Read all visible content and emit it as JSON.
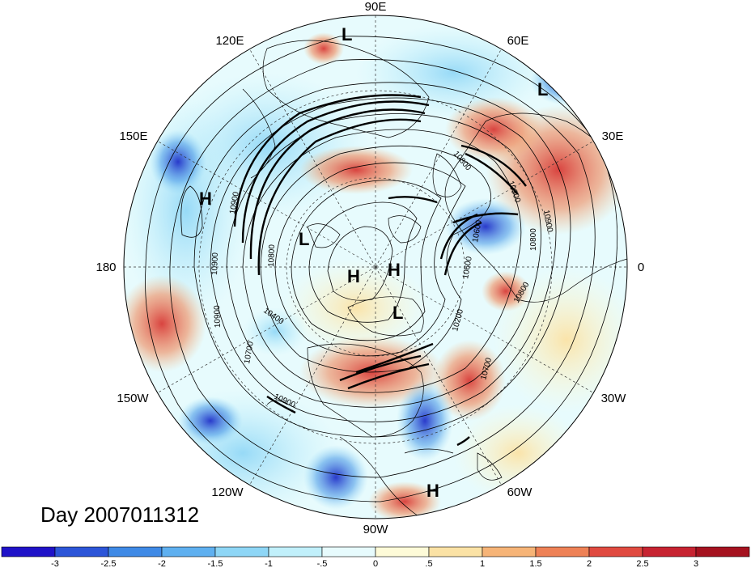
{
  "title": "Day 2007011312",
  "longitude_labels": {
    "lon_90E": "90E",
    "lon_120E": "120E",
    "lon_60E": "60E",
    "lon_150E": "150E",
    "lon_30E": "30E",
    "lon_180": "180",
    "lon_0": "0",
    "lon_150W": "150W",
    "lon_30W": "30W",
    "lon_120W": "120W",
    "lon_60W": "60W",
    "lon_90W": "90W"
  },
  "pressure_centers": [
    {
      "label": "L",
      "name": "low-center-north"
    },
    {
      "label": "L",
      "name": "low-center-europe"
    },
    {
      "label": "H",
      "name": "high-center-pacific"
    },
    {
      "label": "L",
      "name": "low-center-siberia"
    },
    {
      "label": "H",
      "name": "high-center-arctic-west"
    },
    {
      "label": "H",
      "name": "high-center-arctic-east"
    },
    {
      "label": "L",
      "name": "low-center-greenland"
    },
    {
      "label": "H",
      "name": "high-center-south-america"
    }
  ],
  "contour_labels": [
    "10900",
    "10900",
    "10800",
    "10900",
    "10900",
    "10800",
    "10400",
    "10900",
    "10700",
    "10700",
    "10900",
    "10200",
    "10600",
    "10800",
    "10800",
    "10600"
  ],
  "colorbar": {
    "ticks": [
      "-3",
      "-2.5",
      "-2",
      "-1.5",
      "-1",
      "-.5",
      "0",
      ".5",
      "1",
      "1.5",
      "2",
      "2.5",
      "3"
    ],
    "colors": [
      "#1f12c8",
      "#2c55d8",
      "#3f8ae6",
      "#5fb0f0",
      "#8ed6f6",
      "#c1f0fb",
      "#e7fbfd",
      "#fefbd8",
      "#fbe2a5",
      "#f6b477",
      "#ee8156",
      "#e04a40",
      "#c72331",
      "#a5121f"
    ]
  }
}
